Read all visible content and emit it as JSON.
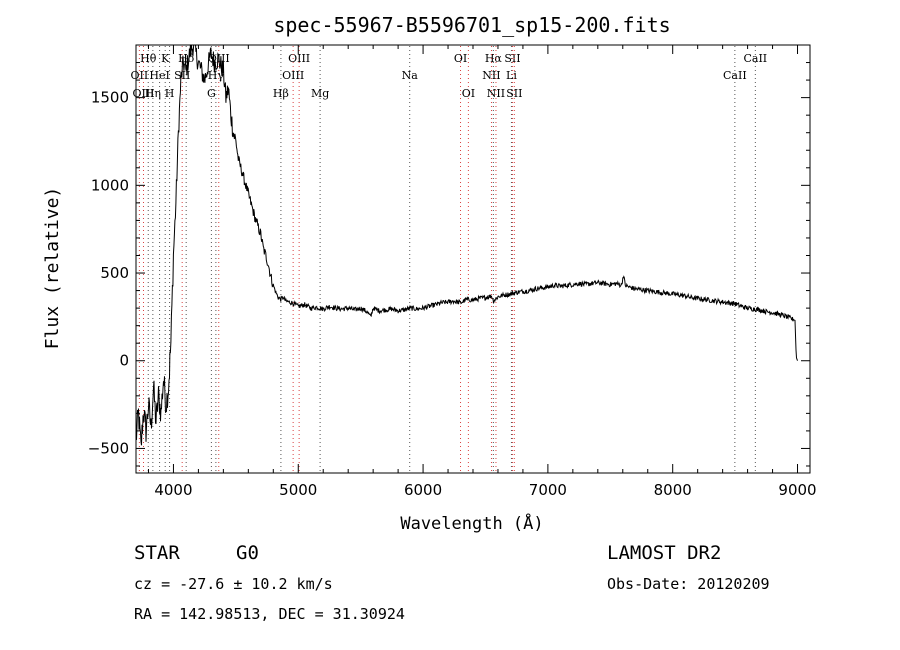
{
  "chart_data": {
    "type": "line",
    "title": "spec-55967-B5596701_sp15-200.fits",
    "xlabel": "Wavelength (Å)",
    "ylabel": "Flux (relative)",
    "xlim": [
      3700,
      9100
    ],
    "ylim": [
      -640,
      1800
    ],
    "xticks": [
      4000,
      5000,
      6000,
      7000,
      8000,
      9000
    ],
    "yticks": [
      -500,
      0,
      500,
      1000,
      1500
    ],
    "grid": false,
    "series": [
      {
        "color": "#000000",
        "x": [
          3700,
          3720,
          3740,
          3760,
          3780,
          3800,
          3820,
          3840,
          3860,
          3880,
          3900,
          3920,
          3940,
          3960,
          3980,
          4000,
          4020,
          4040,
          4060,
          4080,
          4100,
          4130,
          4160,
          4200,
          4250,
          4300,
          4330,
          4360,
          4400,
          4420,
          4440,
          4460,
          4480,
          4500,
          4520,
          4540,
          4560,
          4580,
          4600,
          4620,
          4640,
          4660,
          4680,
          4700,
          4720,
          4740,
          4760,
          4780,
          4800,
          4820,
          4840,
          4860,
          4880,
          4900,
          4950,
          5000,
          5050,
          5100,
          5150,
          5200,
          5250,
          5300,
          5350,
          5400,
          5450,
          5500,
          5550,
          5580,
          5600,
          5650,
          5700,
          5750,
          5800,
          5850,
          5900,
          5950,
          6000,
          6050,
          6100,
          6150,
          6200,
          6250,
          6300,
          6350,
          6400,
          6450,
          6500,
          6550,
          6563,
          6600,
          6650,
          6700,
          6750,
          6800,
          6850,
          6900,
          6950,
          7000,
          7050,
          7100,
          7150,
          7200,
          7250,
          7300,
          7350,
          7400,
          7450,
          7500,
          7550,
          7590,
          7605,
          7620,
          7650,
          7700,
          7750,
          7800,
          7850,
          7900,
          7950,
          8000,
          8050,
          8100,
          8150,
          8200,
          8250,
          8300,
          8350,
          8400,
          8450,
          8500,
          8550,
          8600,
          8650,
          8700,
          8750,
          8800,
          8850,
          8900,
          8950,
          8980,
          8990,
          9000
        ],
        "y": [
          -450,
          -300,
          -500,
          -280,
          -400,
          -250,
          -380,
          -150,
          -350,
          -200,
          -300,
          -100,
          -250,
          -150,
          100,
          600,
          900,
          1300,
          1600,
          1700,
          1650,
          1750,
          1800,
          1700,
          1600,
          1750,
          1700,
          1720,
          1650,
          1500,
          1550,
          1400,
          1300,
          1250,
          1150,
          1100,
          1050,
          1000,
          950,
          900,
          850,
          800,
          760,
          720,
          640,
          600,
          550,
          480,
          430,
          390,
          360,
          350,
          360,
          340,
          330,
          310,
          320,
          300,
          305,
          295,
          310,
          300,
          295,
          300,
          290,
          300,
          280,
          250,
          300,
          285,
          290,
          295,
          285,
          290,
          300,
          295,
          300,
          310,
          320,
          330,
          335,
          340,
          330,
          350,
          345,
          355,
          360,
          370,
          340,
          365,
          375,
          380,
          390,
          395,
          400,
          410,
          415,
          420,
          430,
          425,
          430,
          435,
          440,
          435,
          440,
          445,
          440,
          435,
          440,
          430,
          490,
          430,
          420,
          410,
          405,
          400,
          395,
          390,
          385,
          380,
          375,
          370,
          360,
          355,
          350,
          345,
          340,
          335,
          330,
          325,
          310,
          300,
          295,
          290,
          280,
          275,
          265,
          255,
          240,
          230,
          20,
          0
        ]
      }
    ],
    "lines": [
      {
        "label": "Hθ",
        "x": 3798,
        "type": "absorption",
        "row": 1
      },
      {
        "label": "OII",
        "x": 3727,
        "type": "emission",
        "row": 2
      },
      {
        "label": "OIII",
        "x": 3760,
        "type": "emission",
        "row": 3
      },
      {
        "label": "K",
        "x": 3934,
        "type": "absorption",
        "row": 1
      },
      {
        "label": "HeI",
        "x": 3889,
        "type": "absorption",
        "row": 2
      },
      {
        "label": "Hη",
        "x": 3835,
        "type": "absorption",
        "row": 3
      },
      {
        "label": "SII",
        "x": 4070,
        "type": "emission",
        "row": 2
      },
      {
        "label": "H",
        "x": 3969,
        "type": "absorption",
        "row": 3
      },
      {
        "label": "Hδ",
        "x": 4102,
        "type": "absorption",
        "row": 1
      },
      {
        "label": "OIII",
        "x": 4363,
        "type": "emission",
        "row": 1
      },
      {
        "label": "Hγ",
        "x": 4340,
        "type": "absorption",
        "row": 2
      },
      {
        "label": "G",
        "x": 4304,
        "type": "absorption",
        "row": 3
      },
      {
        "label": "OIII",
        "x": 5007,
        "type": "emission",
        "row": 1
      },
      {
        "label": "OIII",
        "x": 4959,
        "type": "emission",
        "row": 2
      },
      {
        "label": "Hβ",
        "x": 4861,
        "type": "absorption",
        "row": 3
      },
      {
        "label": "Mg",
        "x": 5175,
        "type": "absorption",
        "row": 3
      },
      {
        "label": "Na",
        "x": 5893,
        "type": "absorption",
        "row": 2
      },
      {
        "label": "OI",
        "x": 6300,
        "type": "emission",
        "row": 1
      },
      {
        "label": "OI",
        "x": 6363,
        "type": "emission",
        "row": 3
      },
      {
        "label": "Hα",
        "x": 6563,
        "type": "absorption",
        "row": 1
      },
      {
        "label": "NII",
        "x": 6548,
        "type": "emission",
        "row": 2
      },
      {
        "label": "NII",
        "x": 6584,
        "type": "emission",
        "row": 3
      },
      {
        "label": "SII",
        "x": 6716,
        "type": "emission",
        "row": 1
      },
      {
        "label": "Li",
        "x": 6708,
        "type": "absorption",
        "row": 2
      },
      {
        "label": "SII",
        "x": 6731,
        "type": "emission",
        "row": 3
      },
      {
        "label": "CaII",
        "x": 8662,
        "type": "absorption",
        "row": 1
      },
      {
        "label": "CaII",
        "x": 8498,
        "type": "absorption",
        "row": 2
      }
    ]
  },
  "info": {
    "class": "STAR",
    "subclass": "G0",
    "survey": "LAMOST DR2",
    "cz": "cz = -27.6 ± 10.2 km/s",
    "obs_date": "Obs-Date: 20120209",
    "radec": "RA = 142.98513, DEC =  31.30924"
  }
}
